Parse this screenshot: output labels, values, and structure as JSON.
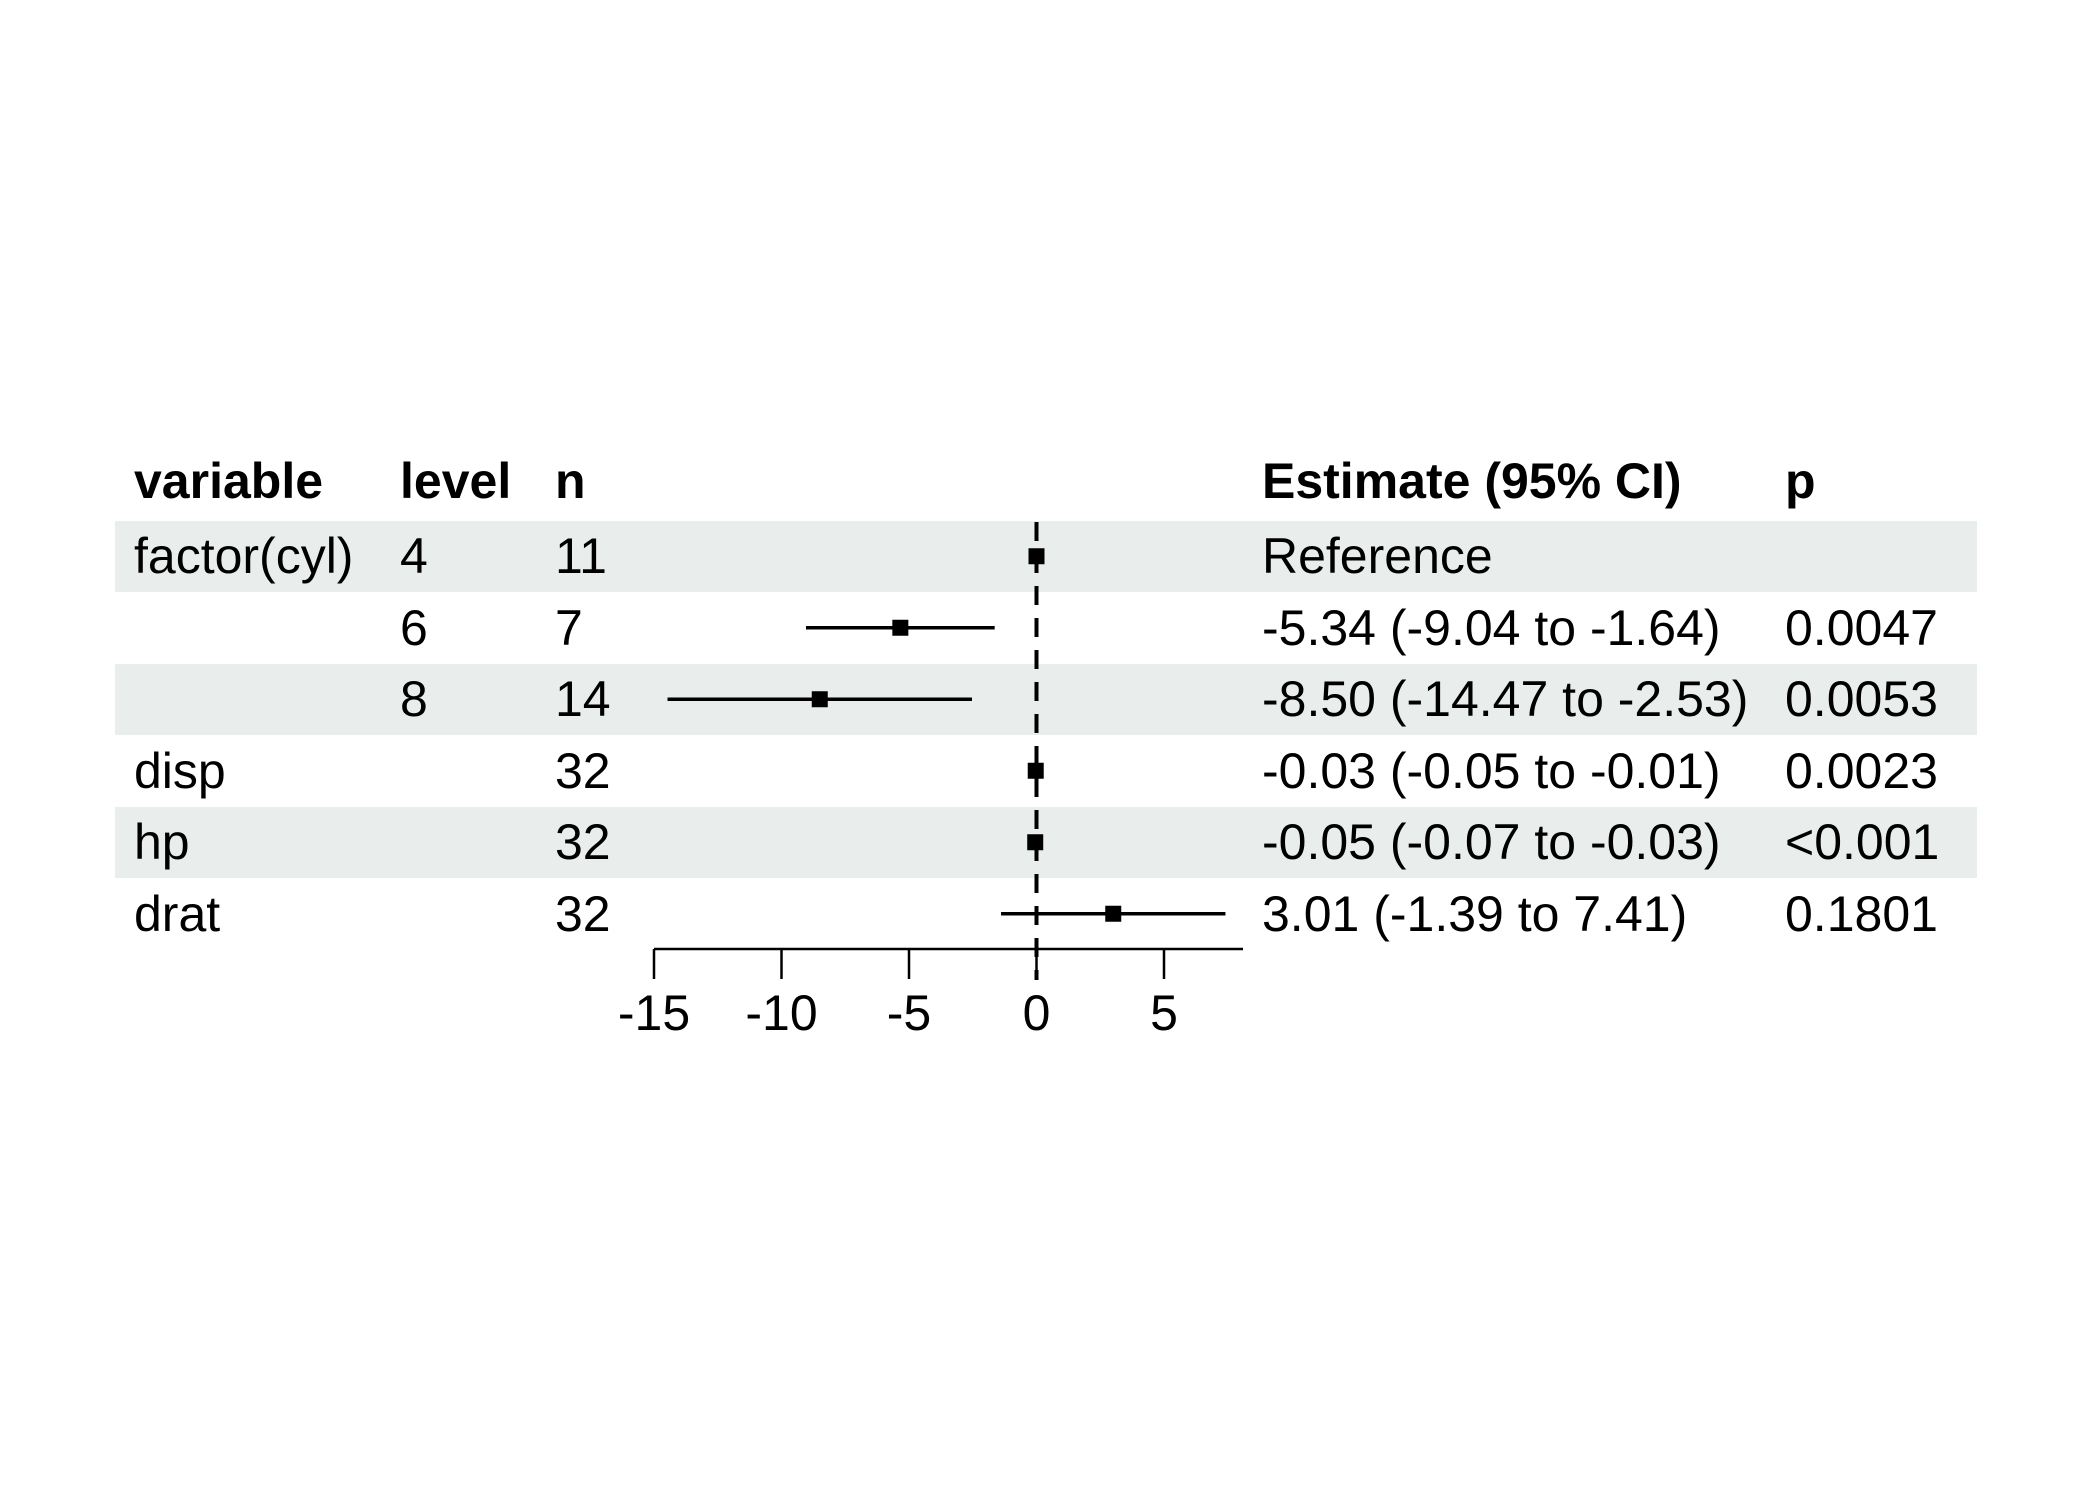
{
  "chart_data": {
    "type": "forest",
    "columns": [
      "variable",
      "level",
      "n",
      "Estimate (95% CI)",
      "p"
    ],
    "rows": [
      {
        "variable": "factor(cyl)",
        "level": "4",
        "n": "11",
        "estimate_label": "Reference",
        "p": "",
        "estimate": 0,
        "ci_low": null,
        "ci_high": null,
        "shaded": true,
        "is_reference": true
      },
      {
        "variable": "",
        "level": "6",
        "n": "7",
        "estimate_label": "-5.34 (-9.04 to -1.64)",
        "p": "0.0047",
        "estimate": -5.34,
        "ci_low": -9.04,
        "ci_high": -1.64,
        "shaded": false,
        "is_reference": false
      },
      {
        "variable": "",
        "level": "8",
        "n": "14",
        "estimate_label": "-8.50 (-14.47 to -2.53)",
        "p": "0.0053",
        "estimate": -8.5,
        "ci_low": -14.47,
        "ci_high": -2.53,
        "shaded": true,
        "is_reference": false
      },
      {
        "variable": "disp",
        "level": "",
        "n": "32",
        "estimate_label": "-0.03 (-0.05 to -0.01)",
        "p": "0.0023",
        "estimate": -0.03,
        "ci_low": -0.05,
        "ci_high": -0.01,
        "shaded": false,
        "is_reference": false
      },
      {
        "variable": "hp",
        "level": "",
        "n": "32",
        "estimate_label": "-0.05 (-0.07 to -0.03)",
        "p": "<0.001",
        "estimate": -0.05,
        "ci_low": -0.07,
        "ci_high": -0.03,
        "shaded": true,
        "is_reference": false
      },
      {
        "variable": "drat",
        "level": "",
        "n": "32",
        "estimate_label": "3.01 (-1.39 to 7.41)",
        "p": "0.1801",
        "estimate": 3.01,
        "ci_low": -1.39,
        "ci_high": 7.41,
        "shaded": false,
        "is_reference": false
      }
    ],
    "x_axis": {
      "ticks": [
        -15,
        -10,
        -5,
        0,
        5
      ],
      "tick_labels": [
        "-15",
        "-10",
        "-5",
        "0",
        "5"
      ],
      "range": [
        -15,
        8.1
      ],
      "reference_line": 0,
      "grid": false
    },
    "marker": "square",
    "legend_position": "none",
    "title": ""
  },
  "header": {
    "variable": "variable",
    "level": "level",
    "n": "n",
    "estimate": "Estimate (95% CI)",
    "p": "p"
  },
  "colors": {
    "band": "#e9eeec",
    "text": "#000000",
    "line": "#000000",
    "background": "#ffffff"
  }
}
